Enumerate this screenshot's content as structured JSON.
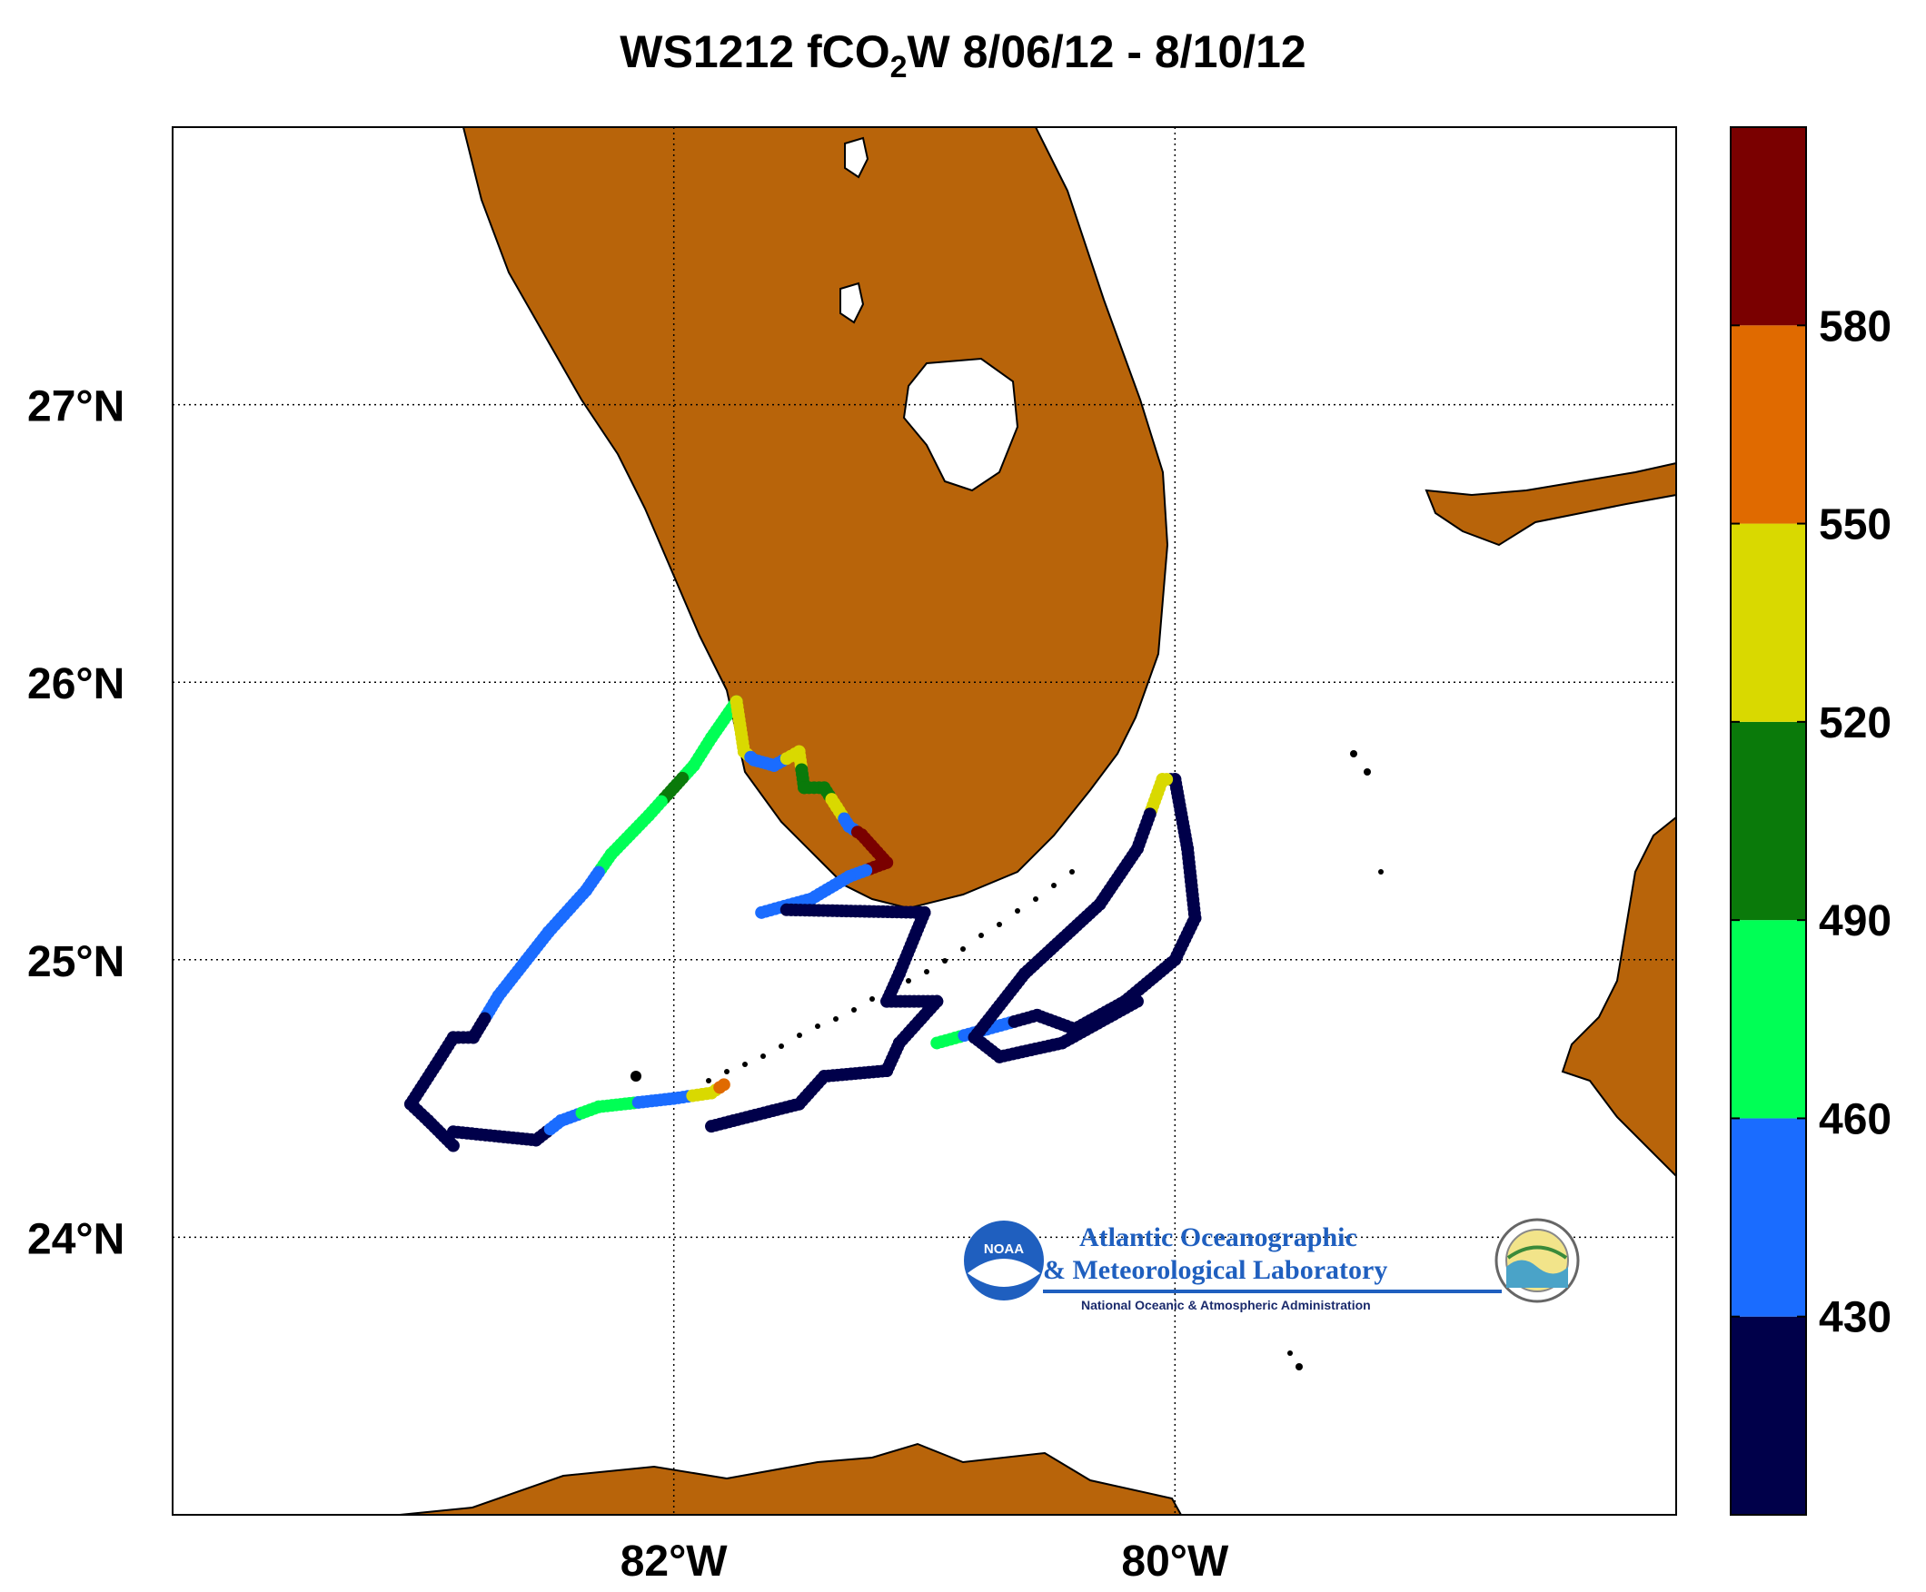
{
  "title": {
    "prefix": "WS1212 fCO",
    "subscript": "2",
    "suffix": "W 8/06/12 - 8/10/12"
  },
  "map": {
    "lon_range": [
      -84.0,
      -78.0
    ],
    "lat_range": [
      23.0,
      28.0
    ],
    "grid": true,
    "land_color": "#b8640a",
    "water_color": "#ffffff",
    "lon_ticks": [
      {
        "value": -82,
        "label": "82°W"
      },
      {
        "value": -80,
        "label": "80°W"
      }
    ],
    "lat_ticks": [
      {
        "value": 27,
        "label": "27°N"
      },
      {
        "value": 26,
        "label": "26°N"
      },
      {
        "value": 25,
        "label": "25°N"
      },
      {
        "value": 24,
        "label": "24°N"
      }
    ]
  },
  "colorbar": {
    "range": [
      400,
      610
    ],
    "ticks": [
      {
        "value": 430,
        "label": "430"
      },
      {
        "value": 460,
        "label": "460"
      },
      {
        "value": 490,
        "label": "490"
      },
      {
        "value": 520,
        "label": "520"
      },
      {
        "value": 550,
        "label": "550"
      },
      {
        "value": 580,
        "label": "580"
      }
    ],
    "bins": [
      {
        "from": 400,
        "to": 430,
        "color": "#00004a"
      },
      {
        "from": 430,
        "to": 460,
        "color": "#1a6cff"
      },
      {
        "from": 460,
        "to": 490,
        "color": "#00ff55"
      },
      {
        "from": 490,
        "to": 520,
        "color": "#0a7a0a"
      },
      {
        "from": 520,
        "to": 550,
        "color": "#d9d900"
      },
      {
        "from": 550,
        "to": 580,
        "color": "#e06a00"
      },
      {
        "from": 580,
        "to": 610,
        "color": "#7a0000"
      }
    ]
  },
  "logo": {
    "line1": "Atlantic Oceanographic",
    "line2": "& Meteorological Laboratory",
    "line3": "National Oceanic & Atmospheric Administration",
    "badge": "NOAA"
  },
  "chart_data": {
    "type": "scatter",
    "title": "WS1212 fCO2W 8/06/12 - 8/10/12",
    "xlabel": "",
    "ylabel": "",
    "xlim": [
      -84.0,
      -78.0
    ],
    "ylim": [
      23.0,
      28.0
    ],
    "colorvar": "fCO2W",
    "track_segments": [
      {
        "name": "",
        "points": [
          [
            -81.75,
            25.93,
            470
          ],
          [
            -81.85,
            25.8,
            470
          ],
          [
            -81.92,
            25.7,
            480
          ],
          [
            -82.0,
            25.62,
            495
          ],
          [
            -82.1,
            25.52,
            475
          ],
          [
            -82.25,
            25.38,
            470
          ],
          [
            -82.35,
            25.25,
            455
          ],
          [
            -82.5,
            25.1,
            445
          ],
          [
            -82.7,
            24.87,
            430
          ],
          [
            -82.8,
            24.72,
            420
          ],
          [
            -82.88,
            24.72,
            420
          ],
          [
            -82.95,
            24.62,
            415
          ],
          [
            -83.05,
            24.48,
            410
          ],
          [
            -82.98,
            24.42,
            410
          ],
          [
            -82.88,
            24.33,
            410
          ]
        ]
      },
      {
        "name": "",
        "points": [
          [
            -82.88,
            24.38,
            410
          ],
          [
            -82.55,
            24.35,
            415
          ],
          [
            -82.45,
            24.42,
            440
          ],
          [
            -82.3,
            24.47,
            470
          ],
          [
            -82.0,
            24.5,
            455
          ],
          [
            -81.85,
            24.52,
            520
          ],
          [
            -81.8,
            24.55,
            565
          ]
        ]
      },
      {
        "name": "",
        "points": [
          [
            -81.75,
            25.93,
            530
          ],
          [
            -81.72,
            25.75,
            540
          ],
          [
            -81.68,
            25.72,
            450
          ],
          [
            -81.6,
            25.7,
            440
          ],
          [
            -81.5,
            25.75,
            530
          ],
          [
            -81.48,
            25.62,
            500
          ],
          [
            -81.4,
            25.62,
            510
          ],
          [
            -81.35,
            25.55,
            540
          ],
          [
            -81.3,
            25.48,
            450
          ],
          [
            -81.25,
            25.45,
            590
          ],
          [
            -81.15,
            25.35,
            590
          ],
          [
            -81.3,
            25.3,
            450
          ],
          [
            -81.45,
            25.22,
            440
          ],
          [
            -81.65,
            25.17,
            430
          ]
        ]
      },
      {
        "name": "",
        "points": [
          [
            -81.55,
            25.18,
            410
          ],
          [
            -81.0,
            25.17,
            405
          ],
          [
            -81.1,
            24.95,
            405
          ],
          [
            -81.15,
            24.85,
            405
          ],
          [
            -80.95,
            24.85,
            405
          ],
          [
            -81.1,
            24.7,
            405
          ],
          [
            -81.15,
            24.6,
            405
          ],
          [
            -81.4,
            24.58,
            405
          ],
          [
            -81.5,
            24.48,
            405
          ],
          [
            -81.85,
            24.4,
            410
          ]
        ]
      },
      {
        "name": "",
        "points": [
          [
            -80.95,
            24.7,
            460
          ],
          [
            -80.75,
            24.75,
            440
          ],
          [
            -80.55,
            24.8,
            420
          ],
          [
            -80.4,
            24.75,
            410
          ],
          [
            -80.2,
            24.85,
            405
          ],
          [
            -80.0,
            25.0,
            405
          ],
          [
            -79.92,
            25.15,
            405
          ],
          [
            -79.95,
            25.4,
            405
          ],
          [
            -80.0,
            25.65,
            405
          ],
          [
            -80.05,
            25.65,
            540
          ],
          [
            -80.15,
            25.4,
            405
          ],
          [
            -80.3,
            25.2,
            405
          ],
          [
            -80.6,
            24.95,
            405
          ],
          [
            -80.8,
            24.72,
            405
          ],
          [
            -80.7,
            24.65,
            405
          ],
          [
            -80.45,
            24.7,
            405
          ],
          [
            -80.15,
            24.85,
            405
          ]
        ]
      }
    ]
  }
}
